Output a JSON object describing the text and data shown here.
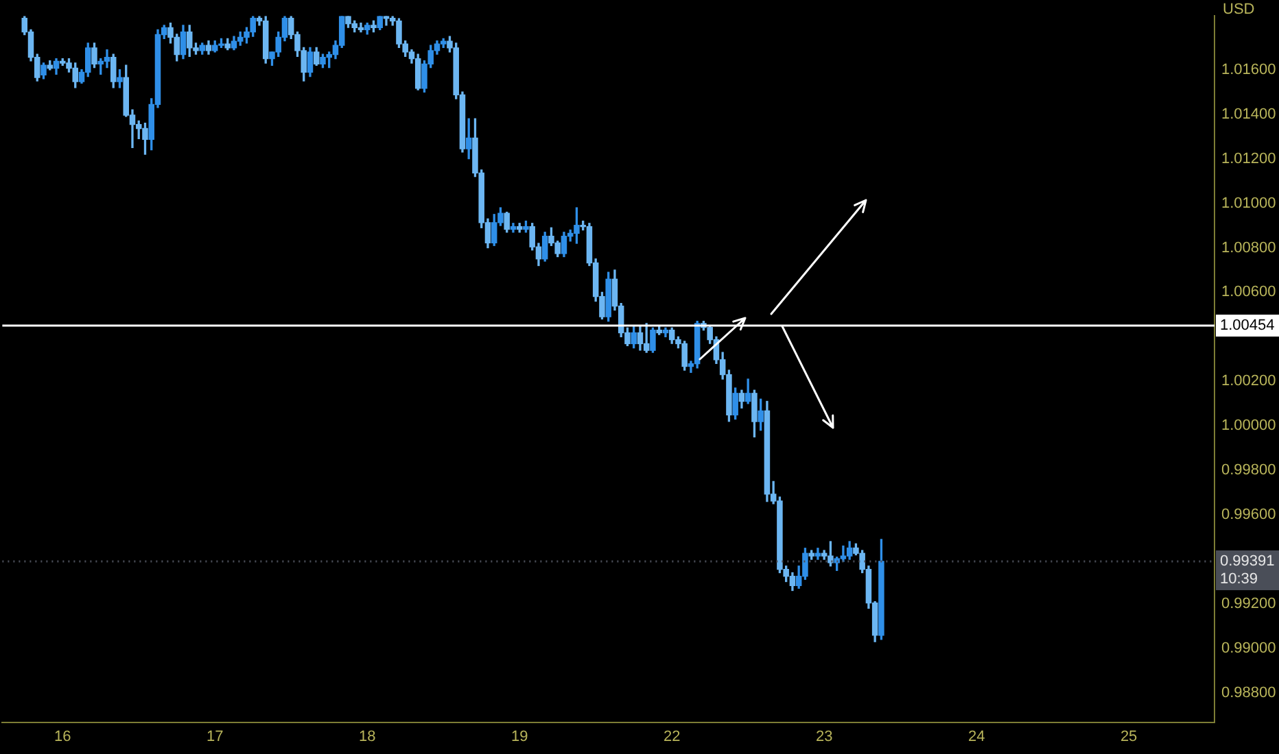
{
  "chart_data": {
    "type": "candlestick",
    "ylabel": "USD",
    "categories": [
      null,
      null,
      null,
      null,
      null,
      null,
      null,
      null,
      null,
      "16",
      null,
      null,
      null,
      null,
      null,
      null,
      null,
      null,
      null,
      null,
      null,
      null,
      null,
      null,
      null,
      null,
      null,
      null,
      null,
      null,
      null,
      null,
      null,
      "17",
      null,
      null,
      null,
      null,
      null,
      null,
      null,
      null,
      null,
      null,
      null,
      null,
      null,
      null,
      null,
      null,
      null,
      null,
      null,
      null,
      null,
      null,
      null,
      "18",
      null,
      null,
      null,
      null,
      null,
      null,
      null,
      null,
      null,
      null,
      null,
      null,
      null,
      null,
      null,
      null,
      null,
      null,
      null,
      null,
      null,
      null,
      null,
      "19",
      null,
      null,
      null,
      null,
      null,
      null,
      null,
      null,
      null,
      null,
      null,
      null,
      null,
      null,
      null,
      null,
      null,
      null,
      null,
      null,
      null,
      null,
      null,
      "22",
      null,
      null,
      null,
      null,
      null,
      null,
      null,
      null,
      null,
      null,
      null,
      null,
      null,
      null,
      null,
      null,
      null,
      null,
      null,
      null,
      null,
      null,
      null,
      "23",
      null,
      null,
      null,
      null,
      null,
      null,
      null,
      null,
      null,
      null,
      null,
      null,
      null,
      null,
      null,
      null,
      null,
      null,
      null,
      null,
      null,
      null,
      null,
      "24",
      null,
      null,
      null,
      null,
      null,
      null,
      null,
      null,
      null,
      null,
      null,
      null,
      null,
      null,
      null,
      null,
      null,
      null,
      null,
      null,
      null,
      null,
      null,
      "25",
      null,
      null,
      null,
      null,
      null,
      null,
      null,
      null,
      null,
      null,
      null,
      null,
      null
    ],
    "ohlc": [
      null,
      null,
      null,
      [
        1.01831,
        1.0184,
        1.01758,
        1.0177
      ],
      [
        1.0177,
        1.0178,
        1.0164,
        1.01656
      ],
      [
        1.01656,
        1.0167,
        1.0155,
        1.01565
      ],
      [
        1.01577,
        1.0163,
        1.0156,
        1.0162
      ],
      [
        1.0162,
        1.0164,
        1.016,
        1.01607
      ],
      [
        1.01607,
        1.0165,
        1.0158,
        1.01638
      ],
      [
        1.01638,
        1.0165,
        1.0162,
        1.0163
      ],
      [
        1.0163,
        1.0165,
        1.0159,
        1.01607
      ],
      [
        1.01607,
        1.0163,
        1.0152,
        1.01547
      ],
      [
        1.01547,
        1.016,
        1.0154,
        1.01589
      ],
      [
        1.01589,
        1.0172,
        1.0157,
        1.01698
      ],
      [
        1.01698,
        1.0172,
        1.0161,
        1.01626
      ],
      [
        1.01626,
        1.0165,
        1.0158,
        1.01638
      ],
      [
        1.01638,
        1.0169,
        1.0161,
        1.01656
      ],
      [
        1.01656,
        1.0167,
        1.0152,
        1.01547
      ],
      [
        1.01547,
        1.016,
        1.0152,
        1.01565
      ],
      [
        1.01565,
        1.0162,
        1.0139,
        1.01396
      ],
      [
        1.01396,
        1.0142,
        1.0125,
        1.01354
      ],
      [
        1.01354,
        1.0137,
        1.0129,
        1.01336
      ],
      [
        1.01336,
        1.0136,
        1.0122,
        1.01287
      ],
      [
        1.01287,
        1.0147,
        1.0124,
        1.01444
      ],
      [
        1.01444,
        1.0178,
        1.0143,
        1.01758
      ],
      [
        1.01758,
        1.018,
        1.0174,
        1.01789
      ],
      [
        1.01789,
        1.0181,
        1.0172,
        1.01746
      ],
      [
        1.01746,
        1.0176,
        1.0164,
        1.01668
      ],
      [
        1.01668,
        1.018,
        1.0165,
        1.0177
      ],
      [
        1.0177,
        1.018,
        1.0166,
        1.01698
      ],
      [
        1.01698,
        1.0172,
        1.0167,
        1.01686
      ],
      [
        1.01686,
        1.0172,
        1.0167,
        1.0171
      ],
      [
        1.0171,
        1.0173,
        1.0167,
        1.01686
      ],
      [
        1.01686,
        1.0173,
        1.0168,
        1.0171
      ],
      [
        1.0171,
        1.0174,
        1.017,
        1.01716
      ],
      [
        1.01716,
        1.0174,
        1.0169,
        1.01698
      ],
      [
        1.01698,
        1.0175,
        1.0169,
        1.01728
      ],
      [
        1.01728,
        1.0177,
        1.0171,
        1.01746
      ],
      [
        1.01746,
        1.0179,
        1.0172,
        1.0177
      ],
      [
        1.0177,
        1.0184,
        1.0175,
        1.01831
      ],
      [
        1.01831,
        1.0184,
        1.018,
        1.01819
      ],
      [
        1.01819,
        1.0184,
        1.0163,
        1.0165
      ],
      [
        1.0165,
        1.0168,
        1.0162,
        1.0168
      ],
      [
        1.0168,
        1.0177,
        1.0166,
        1.01746
      ],
      [
        1.01746,
        1.0184,
        1.0173,
        1.01831
      ],
      [
        1.01831,
        1.0184,
        1.0174,
        1.01758
      ],
      [
        1.01758,
        1.0177,
        1.0166,
        1.01686
      ],
      [
        1.01686,
        1.017,
        1.0155,
        1.01589
      ],
      [
        1.01589,
        1.017,
        1.0157,
        1.0168
      ],
      [
        1.0168,
        1.017,
        1.0162,
        1.01626
      ],
      [
        1.01626,
        1.0167,
        1.0161,
        1.01656
      ],
      [
        1.01656,
        1.0168,
        1.0161,
        1.01668
      ],
      [
        1.01668,
        1.0173,
        1.0165,
        1.0171
      ],
      [
        1.0171,
        1.0184,
        1.017,
        1.0184
      ],
      [
        1.0184,
        1.0184,
        1.0179,
        1.01807
      ],
      [
        1.01807,
        1.0182,
        1.0177,
        1.01789
      ],
      [
        1.01789,
        1.0181,
        1.0177,
        1.0178
      ],
      [
        1.0178,
        1.0181,
        1.0176,
        1.018
      ],
      [
        1.018,
        1.0182,
        1.0177,
        1.01789
      ],
      [
        1.01789,
        1.0184,
        1.0178,
        1.0184
      ],
      [
        1.0184,
        1.0184,
        1.018,
        1.01831
      ],
      [
        1.01831,
        1.0184,
        1.018,
        1.01819
      ],
      [
        1.01819,
        1.0183,
        1.017,
        1.01716
      ],
      [
        1.01716,
        1.0173,
        1.0166,
        1.0168
      ],
      [
        1.0168,
        1.0169,
        1.0163,
        1.0165
      ],
      [
        1.0165,
        1.0167,
        1.0151,
        1.01517
      ],
      [
        1.01517,
        1.0164,
        1.015,
        1.01626
      ],
      [
        1.01626,
        1.0171,
        1.0161,
        1.01686
      ],
      [
        1.01686,
        1.0173,
        1.0167,
        1.01716
      ],
      [
        1.01716,
        1.0174,
        1.017,
        1.01728
      ],
      [
        1.01728,
        1.0175,
        1.0168,
        1.01698
      ],
      [
        1.01698,
        1.0172,
        1.0147,
        1.01487
      ],
      [
        1.01487,
        1.015,
        1.0123,
        1.01245
      ],
      [
        1.01245,
        1.0138,
        1.012,
        1.01293
      ],
      [
        1.01293,
        1.0138,
        1.0112,
        1.01136
      ],
      [
        1.01136,
        1.0115,
        1.0089,
        1.00913
      ],
      [
        1.00913,
        1.0093,
        1.008,
        1.00822
      ],
      [
        1.00822,
        1.0095,
        1.0081,
        1.00913
      ],
      [
        1.00913,
        1.0098,
        1.009,
        1.00955
      ],
      [
        1.00955,
        1.0096,
        1.0087,
        1.00883
      ],
      [
        1.00883,
        1.0091,
        1.0087,
        1.00895
      ],
      [
        1.00895,
        1.0091,
        1.0087,
        1.00883
      ],
      [
        1.00883,
        1.0092,
        1.0087,
        1.00895
      ],
      [
        1.00895,
        1.0091,
        1.0079,
        1.00804
      ],
      [
        1.00804,
        1.0082,
        1.0072,
        1.0075
      ],
      [
        1.0075,
        1.0087,
        1.0074,
        1.00852
      ],
      [
        1.00852,
        1.0089,
        1.0081,
        1.00822
      ],
      [
        1.00822,
        1.0083,
        1.0076,
        1.00774
      ],
      [
        1.00774,
        1.0087,
        1.0076,
        1.00852
      ],
      [
        1.00852,
        1.0088,
        1.0083,
        1.00865
      ],
      [
        1.00865,
        1.0098,
        1.0082,
        1.00901
      ],
      [
        1.00901,
        1.0092,
        1.0088,
        1.00895
      ],
      [
        1.00895,
        1.0091,
        1.0072,
        1.00732
      ],
      [
        1.00732,
        1.0075,
        1.0056,
        1.00581
      ],
      [
        1.00581,
        1.006,
        1.0048,
        1.0049
      ],
      [
        1.0049,
        1.0069,
        1.0047,
        1.00659
      ],
      [
        1.00659,
        1.007,
        1.0052,
        1.00538
      ],
      [
        1.00538,
        1.0055,
        1.004,
        1.00418
      ],
      [
        1.00418,
        1.0044,
        1.0036,
        1.00369
      ],
      [
        1.00369,
        1.0045,
        1.0035,
        1.00418
      ],
      [
        1.00418,
        1.0045,
        1.0034,
        1.00369
      ],
      [
        1.00369,
        1.0046,
        1.0033,
        1.00339
      ],
      [
        1.00339,
        1.0044,
        1.0033,
        1.0043
      ],
      [
        1.0043,
        1.0045,
        1.0041,
        1.00418
      ],
      [
        1.00418,
        1.0044,
        1.004,
        1.0043
      ],
      [
        1.0043,
        1.0044,
        1.0037,
        1.00387
      ],
      [
        1.00387,
        1.004,
        1.0035,
        1.00369
      ],
      [
        1.00369,
        1.0038,
        1.0025,
        1.00267
      ],
      [
        1.00267,
        1.0029,
        1.0024,
        1.00279
      ],
      [
        1.00279,
        1.0047,
        1.0026,
        1.0046
      ],
      [
        1.0046,
        1.0047,
        1.0043,
        1.00442
      ],
      [
        1.00442,
        1.0045,
        1.0037,
        1.00387
      ],
      [
        1.00387,
        1.004,
        1.0028,
        1.00297
      ],
      [
        1.00297,
        1.0033,
        1.0021,
        1.0023
      ],
      [
        1.0023,
        1.0025,
        1.0002,
        1.00049
      ],
      [
        1.00049,
        1.0017,
        1.0003,
        1.00146
      ],
      [
        1.00146,
        1.0016,
        1.0008,
        1.0011
      ],
      [
        1.0011,
        1.0021,
        1.001,
        1.00146
      ],
      [
        1.00146,
        1.0016,
        0.9995,
        1.00019
      ],
      [
        1.00019,
        1.0012,
        0.9998,
        1.00067
      ],
      [
        1.00067,
        1.0011,
        0.9966,
        0.99693
      ],
      [
        0.99693,
        0.9975,
        0.9965,
        0.99662
      ],
      [
        0.99662,
        0.9968,
        0.9934,
        0.99355
      ],
      [
        0.99355,
        0.9937,
        0.993,
        0.99324
      ],
      [
        0.99324,
        0.9934,
        0.9926,
        0.99282
      ],
      [
        0.99282,
        0.9937,
        0.9927,
        0.99324
      ],
      [
        0.99324,
        0.9945,
        0.9931,
        0.99427
      ],
      [
        0.99427,
        0.9944,
        0.994,
        0.99415
      ],
      [
        0.99415,
        0.9945,
        0.994,
        0.99427
      ],
      [
        0.99427,
        0.9944,
        0.994,
        0.99415
      ],
      [
        0.99415,
        0.9948,
        0.9937,
        0.99385
      ],
      [
        0.99385,
        0.9941,
        0.9935,
        0.99403
      ],
      [
        0.99403,
        0.9946,
        0.9939,
        0.99415
      ],
      [
        0.99415,
        0.9948,
        0.994,
        0.99451
      ],
      [
        0.99451,
        0.9947,
        0.9942,
        0.99427
      ],
      [
        0.99427,
        0.9944,
        0.9934,
        0.99355
      ],
      [
        0.99355,
        0.9937,
        0.9918,
        0.99204
      ],
      [
        0.99204,
        0.9921,
        0.9903,
        0.99059
      ],
      [
        0.99059,
        0.9949,
        0.9904,
        0.99391
      ],
      null,
      null,
      null,
      null,
      null,
      null,
      null,
      null,
      null,
      null,
      null,
      null,
      null,
      null,
      null,
      null,
      null,
      null,
      null,
      null,
      null,
      null,
      null,
      null,
      null,
      null,
      null,
      null,
      null,
      null,
      null,
      null,
      null,
      null,
      null,
      null,
      null,
      null,
      null,
      null,
      null,
      null,
      null,
      null,
      null,
      null,
      null,
      null,
      null,
      null,
      null,
      null
    ],
    "colors": [
      null,
      null,
      null,
      "#6cb6f2",
      "#6cb6f2",
      "#6cb6f2",
      "#2f8fe8",
      "#6cb6f2",
      "#2f8fe8",
      "#6cb6f2",
      "#6cb6f2",
      "#6cb6f2",
      "#2f8fe8",
      "#2f8fe8",
      "#6cb6f2",
      "#2f8fe8",
      "#2f8fe8",
      "#6cb6f2",
      "#2f8fe8",
      "#6cb6f2",
      "#6cb6f2",
      "#6cb6f2",
      "#6cb6f2",
      "#2f8fe8",
      "#2f8fe8",
      "#2f8fe8",
      "#6cb6f2",
      "#6cb6f2",
      "#2f8fe8",
      "#6cb6f2",
      "#6cb6f2",
      "#2f8fe8",
      "#6cb6f2",
      "#2f8fe8",
      "#2f8fe8",
      "#6cb6f2",
      "#2f8fe8",
      "#2f8fe8",
      "#2f8fe8",
      "#2f8fe8",
      "#6cb6f2",
      "#6cb6f2",
      "#2f8fe8",
      "#2f8fe8",
      "#2f8fe8",
      "#6cb6f2",
      "#6cb6f2",
      "#6cb6f2",
      "#2f8fe8",
      "#6cb6f2",
      "#2f8fe8",
      "#2f8fe8",
      "#2f8fe8",
      "#2f8fe8",
      "#6cb6f2",
      "#6cb6f2",
      "#6cb6f2",
      "#2f8fe8",
      "#6cb6f2",
      "#2f8fe8",
      "#6cb6f2",
      "#6cb6f2",
      "#6cb6f2",
      "#6cb6f2",
      "#6cb6f2",
      "#6cb6f2",
      "#2f8fe8",
      "#2f8fe8",
      "#2f8fe8",
      "#2f8fe8",
      "#6cb6f2",
      "#6cb6f2",
      "#6cb6f2",
      "#2f8fe8",
      "#6cb6f2",
      "#6cb6f2",
      "#6cb6f2",
      "#2f8fe8",
      "#2f8fe8",
      "#6cb6f2",
      "#2f8fe8",
      "#6cb6f2",
      "#2f8fe8",
      "#6cb6f2",
      "#6cb6f2",
      "#2f8fe8",
      "#6cb6f2",
      "#6cb6f2",
      "#2f8fe8",
      "#2f8fe8",
      "#2f8fe8",
      "#6cb6f2",
      "#6cb6f2",
      "#6cb6f2",
      "#6cb6f2",
      "#2f8fe8",
      "#6cb6f2",
      "#6cb6f2",
      "#6cb6f2",
      "#2f8fe8",
      "#6cb6f2",
      "#6cb6f2",
      "#2f8fe8",
      "#6cb6f2",
      "#2f8fe8",
      "#6cb6f2",
      "#6cb6f2",
      "#6cb6f2",
      "#2f8fe8",
      "#2f8fe8",
      "#6cb6f2",
      "#6cb6f2",
      "#6cb6f2",
      "#6cb6f2",
      "#6cb6f2",
      "#2f8fe8",
      "#6cb6f2",
      "#2f8fe8",
      "#6cb6f2",
      "#2f8fe8",
      "#6cb6f2",
      "#6cb6f2",
      "#6cb6f2",
      "#6cb6f2",
      "#6cb6f2",
      "#2f8fe8",
      "#2f8fe8",
      "#6cb6f2",
      "#2f8fe8",
      "#6cb6f2",
      "#6cb6f2",
      "#2f8fe8",
      "#2f8fe8",
      "#2f8fe8",
      "#6cb6f2",
      "#6cb6f2",
      "#6cb6f2",
      "#6cb6f2",
      "#2f8fe8",
      null,
      null,
      null,
      null,
      null,
      null,
      null,
      null,
      null,
      null,
      null,
      null,
      null,
      null,
      null,
      null,
      null,
      null,
      null,
      null,
      null,
      null,
      null,
      null,
      null,
      null,
      null,
      null,
      null,
      null,
      null,
      null,
      null,
      null,
      null,
      null,
      null,
      null,
      null,
      null,
      null,
      null,
      null,
      null,
      null,
      null,
      null,
      null,
      null,
      null,
      null,
      null
    ],
    "ylim": [
      0.98667,
      1.01842
    ],
    "yticks": [
      {
        "value": 0.988,
        "label": "0.98800"
      },
      {
        "value": 0.99,
        "label": "0.99000"
      },
      {
        "value": 0.992,
        "label": "0.99200"
      },
      {
        "value": 0.996,
        "label": "0.99600"
      },
      {
        "value": 0.998,
        "label": "0.99800"
      },
      {
        "value": 1.0,
        "label": "1.00000"
      },
      {
        "value": 1.002,
        "label": "1.00200"
      },
      {
        "value": 1.006,
        "label": "1.00600"
      },
      {
        "value": 1.008,
        "label": "1.00800"
      },
      {
        "value": 1.01,
        "label": "1.01000"
      },
      {
        "value": 1.012,
        "label": "1.01200"
      },
      {
        "value": 1.014,
        "label": "1.01400"
      },
      {
        "value": 1.016,
        "label": "1.01600"
      }
    ],
    "ref_lines": [
      {
        "axis": "y",
        "value": 1.00454,
        "label": "1.00454",
        "color": "#ffffff",
        "line_style": "solid"
      },
      {
        "axis": "y",
        "value": 0.99391,
        "label": "0.99391",
        "color": "#4a4e58",
        "line_style": "dotted"
      }
    ],
    "annotations": [
      "10:39"
    ],
    "grid": false,
    "legend": false
  }
}
